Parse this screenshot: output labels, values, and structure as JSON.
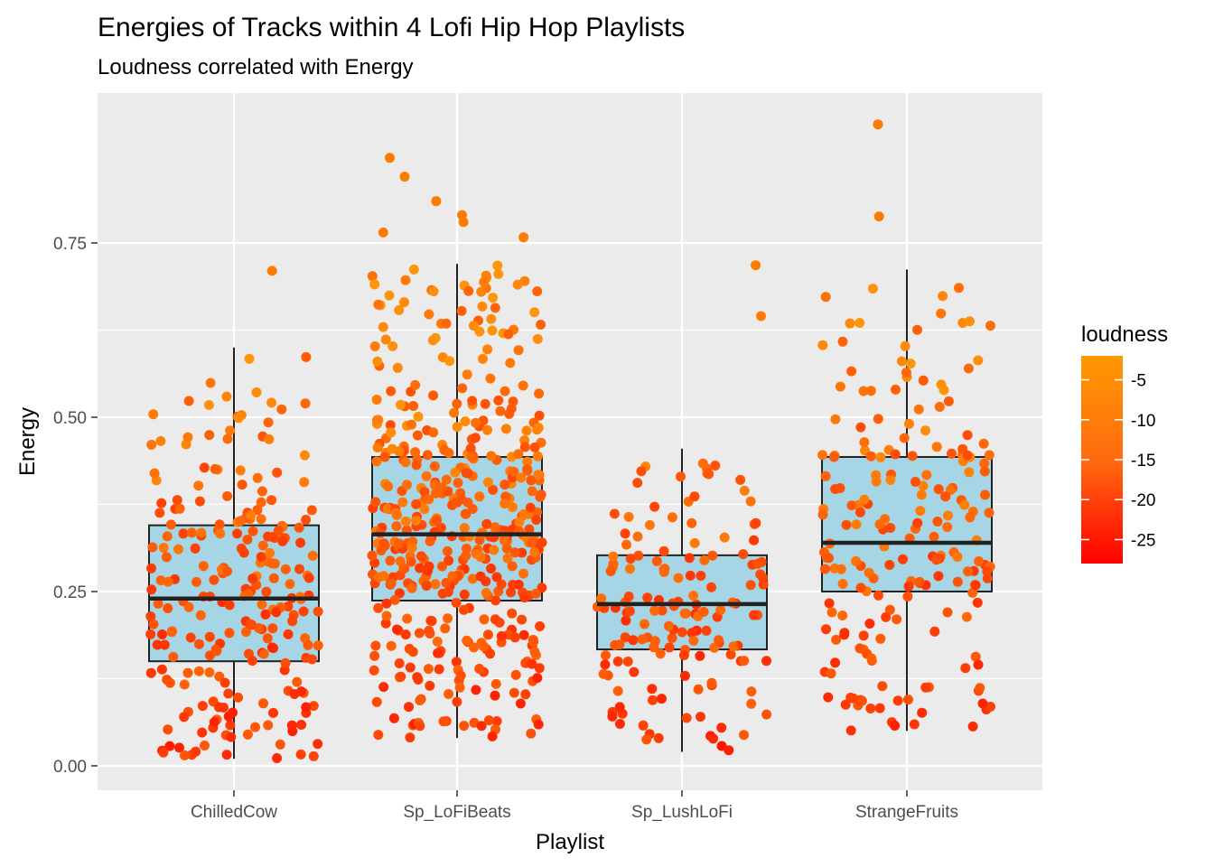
{
  "colors": {
    "panel_bg": "#ebebeb",
    "grid_major": "#ffffff",
    "box_fill": "#a6d5e6",
    "box_stroke": "#222222",
    "tick_text": "#4d4d4d",
    "loudness_high": "#ff8c00",
    "loudness_low": "#ff0000"
  },
  "chart_data": {
    "type": "boxplot-jitter",
    "title": "Energies of Tracks within 4 Lofi Hip Hop Playlists",
    "subtitle": "Loudness correlated with Energy",
    "xlabel": "Playlist",
    "ylabel": "Energy",
    "categories": [
      "ChilledCow",
      "Sp_LoFiBeats",
      "Sp_LushLoFi",
      "StrangeFruits"
    ],
    "ylim": [
      -0.035,
      0.965
    ],
    "yticks": [
      0.0,
      0.25,
      0.5,
      0.75
    ],
    "ytick_labels": [
      "0.00",
      "0.25",
      "0.50",
      "0.75"
    ],
    "grid": true,
    "legend": {
      "title": "loudness",
      "placement": "right",
      "range": [
        -28,
        -2
      ],
      "ticks": [
        -5,
        -10,
        -15,
        -20,
        -25
      ],
      "tick_labels": [
        "-5",
        "-10",
        "-15",
        "-20",
        "-25"
      ]
    },
    "boxes": [
      {
        "category": "ChilledCow",
        "whisker_low": 0.01,
        "q1": 0.15,
        "median": 0.24,
        "q3": 0.345,
        "whisker_high": 0.6,
        "n_points": 240
      },
      {
        "category": "Sp_LoFiBeats",
        "whisker_low": 0.04,
        "q1": 0.237,
        "median": 0.332,
        "q3": 0.443,
        "whisker_high": 0.72,
        "n_points": 470
      },
      {
        "category": "Sp_LushLoFi",
        "whisker_low": 0.02,
        "q1": 0.167,
        "median": 0.232,
        "q3": 0.302,
        "whisker_high": 0.455,
        "n_points": 150
      },
      {
        "category": "StrangeFruits",
        "whisker_low": 0.05,
        "q1": 0.25,
        "median": 0.32,
        "q3": 0.443,
        "whisker_high": 0.712,
        "n_points": 200
      }
    ],
    "outliers": [
      {
        "category": "ChilledCow",
        "y": 0.71
      },
      {
        "category": "Sp_LoFiBeats",
        "y": 0.78
      },
      {
        "category": "Sp_LoFiBeats",
        "y": 0.845
      },
      {
        "category": "Sp_LoFiBeats",
        "y": 0.872
      },
      {
        "category": "Sp_LoFiBeats",
        "y": 0.81
      },
      {
        "category": "Sp_LoFiBeats",
        "y": 0.79
      },
      {
        "category": "Sp_LoFiBeats",
        "y": 0.765
      },
      {
        "category": "Sp_LoFiBeats",
        "y": 0.758
      },
      {
        "category": "Sp_LushLoFi",
        "y": 0.718
      },
      {
        "category": "Sp_LushLoFi",
        "y": 0.645
      },
      {
        "category": "StrangeFruits",
        "y": 0.92
      },
      {
        "category": "StrangeFruits",
        "y": 0.788
      }
    ]
  }
}
